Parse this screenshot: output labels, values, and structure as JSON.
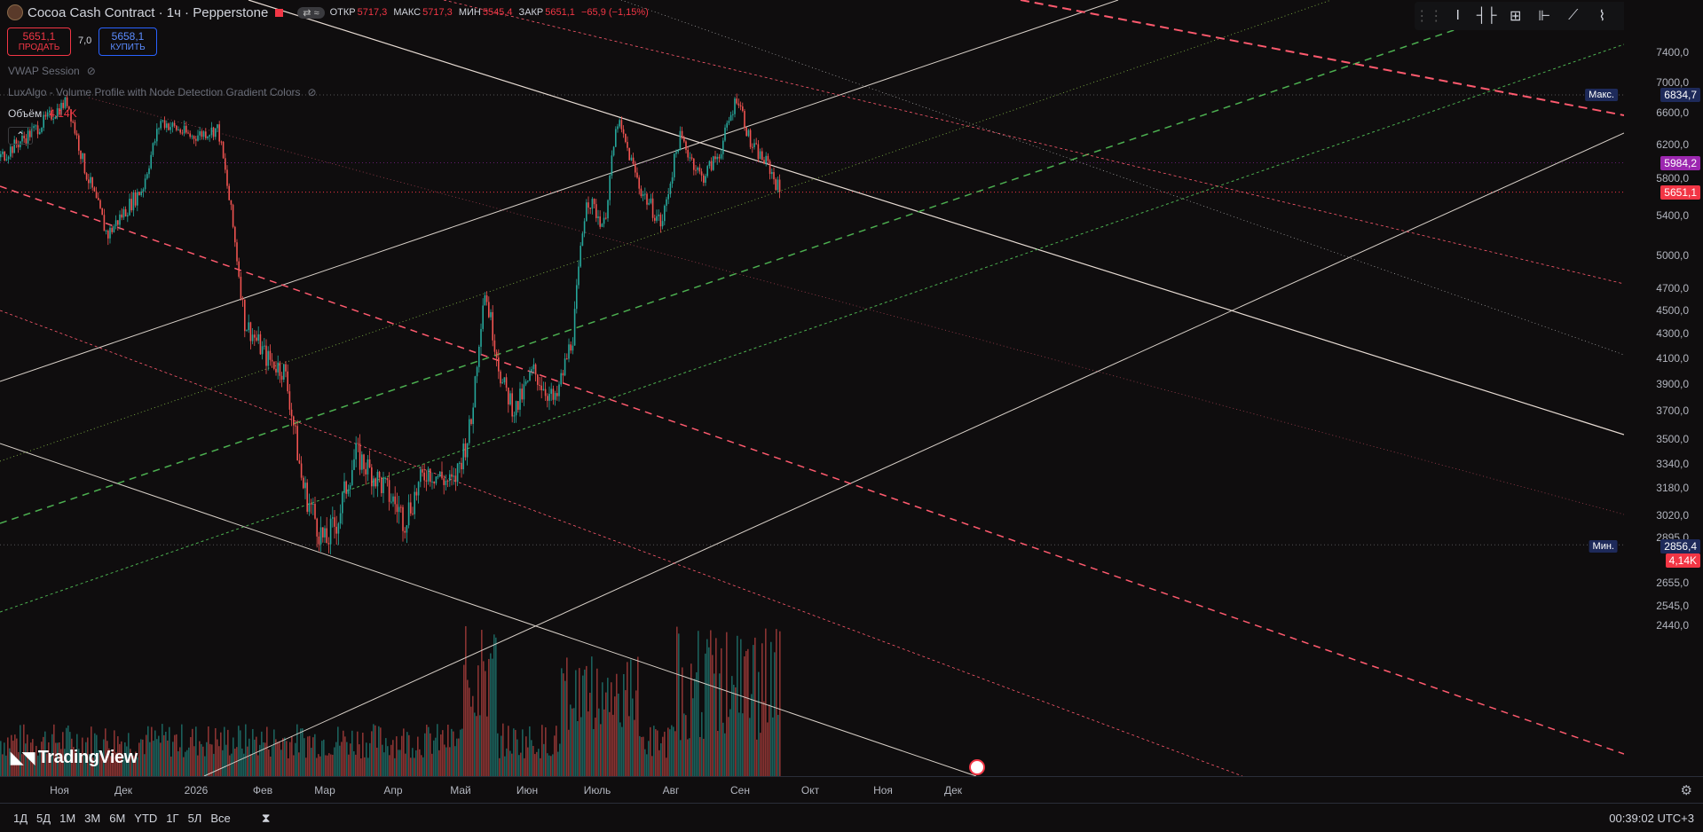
{
  "header": {
    "title": "Cocoa Cash Contract · 1ч · Pepperstone",
    "ohlc": [
      {
        "key": "ОТКР",
        "value": "5717,3"
      },
      {
        "key": "МАКС",
        "value": "5717,3"
      },
      {
        "key": "МИН",
        "value": "5545,4"
      },
      {
        "key": "ЗАКР",
        "value": "5651,1"
      }
    ],
    "change": "−65,9 (−1,15%)"
  },
  "trade": {
    "sell_price": "5651,1",
    "sell_label": "ПРОДАТЬ",
    "spread": "7,0",
    "buy_price": "5658,1",
    "buy_label": "КУПИТЬ"
  },
  "indicators": {
    "vwap": "VWAP Session",
    "luxalgo": "LuxAlgo - Volume Profile with Node Detection Gradient Colors",
    "volume_label": "Объём",
    "volume_value": "4,14K"
  },
  "price_axis": {
    "ticks": [
      "7400,0",
      "7000,0",
      "6600,0",
      "6200,0",
      "5800,0",
      "5400,0",
      "5000,0",
      "4700,0",
      "4500,0",
      "4300,0",
      "4100,0",
      "3900,0",
      "3700,0",
      "3500,0",
      "3340,0",
      "3180,0",
      "3020,0",
      "2895,0",
      "2655,0",
      "2545,0",
      "2440,0"
    ],
    "max_label": "Макс.",
    "max_value": "6834,7",
    "min_label": "Мин.",
    "min_value": "2856,4",
    "purple_value": "5984,2",
    "current_value": "5651,1",
    "volume_tag": "4,14K"
  },
  "time_axis": {
    "labels": [
      "Ноя",
      "Дек",
      "2026",
      "Фев",
      "Мар",
      "Апр",
      "Май",
      "Июн",
      "Июль",
      "Авг",
      "Сен",
      "Окт",
      "Ноя",
      "Дек"
    ]
  },
  "bottom_bar": {
    "ranges": [
      "1Д",
      "5Д",
      "1М",
      "3М",
      "6М",
      "YTD",
      "1Г",
      "5Л",
      "Все"
    ],
    "clock": "00:39:02 UTC+3"
  },
  "brand": "TradingView",
  "colors": {
    "background": "#0f0d0e",
    "up": "#26a69a",
    "down": "#ef5350",
    "sell": "#f23645",
    "buy": "#2962ff",
    "green_dash": "#4caf50",
    "red_dash": "#ff5a6e",
    "purple_tag": "#9c27b0",
    "navy_tag": "#1e2a5a"
  },
  "chart_data": {
    "type": "candlestick",
    "series_name": "Cocoa Cash Contract",
    "ylim": [
      2440,
      7400
    ],
    "x": [
      "Ноя",
      "Дек",
      "2026",
      "Фев",
      "Мар",
      "Апр",
      "Май",
      "Июн",
      "Июль",
      "Авг",
      "Сен"
    ],
    "close": [
      6150,
      5200,
      6300,
      4100,
      2850,
      3300,
      4700,
      3850,
      6150,
      5400,
      6834.7
    ],
    "max": 6834.7,
    "min": 2856.4,
    "last": 5651.1
  }
}
